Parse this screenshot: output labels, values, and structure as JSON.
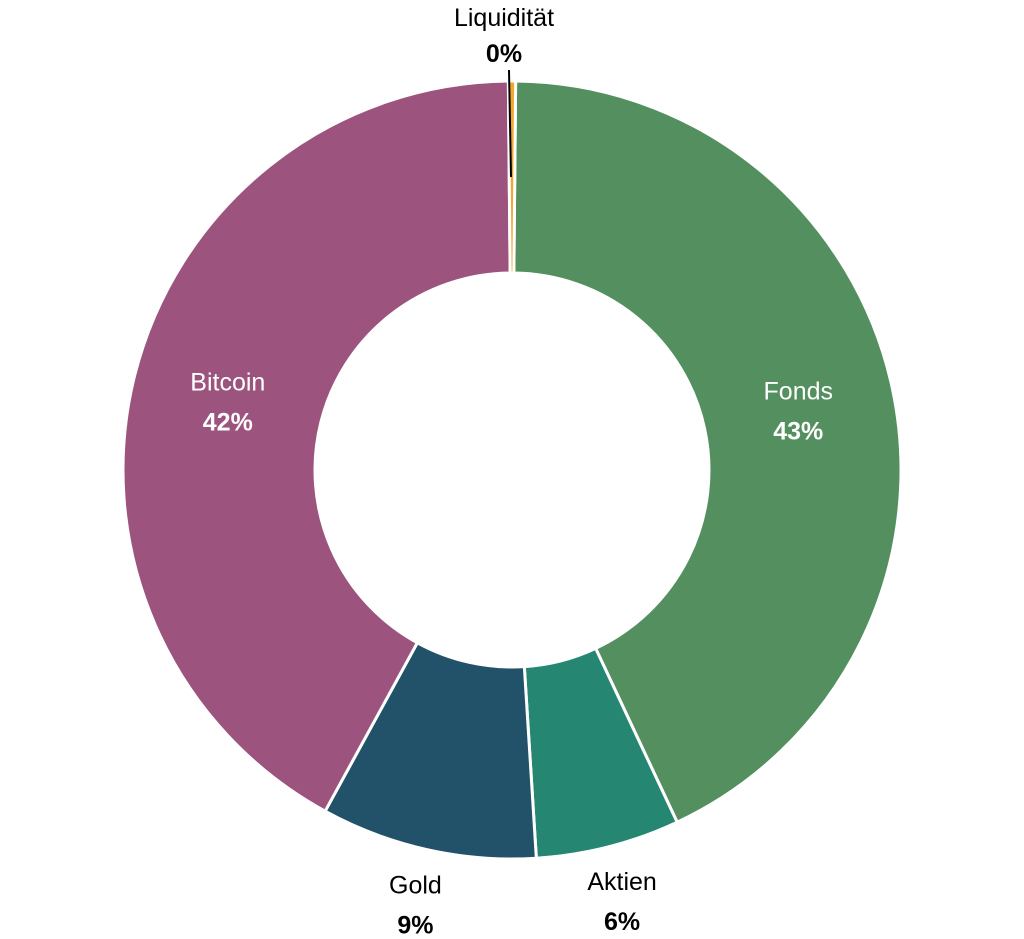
{
  "chart_data": {
    "type": "pie",
    "variant": "donut",
    "title": "",
    "legend": "none",
    "slices": [
      {
        "label": "Fonds",
        "value": 43,
        "value_label": "43%",
        "color": "#548f5f",
        "label_placement": "inside"
      },
      {
        "label": "Aktien",
        "value": 6,
        "value_label": "6%",
        "color": "#258672",
        "label_placement": "outside"
      },
      {
        "label": "Gold",
        "value": 9,
        "value_label": "9%",
        "color": "#22526a",
        "label_placement": "outside"
      },
      {
        "label": "Bitcoin",
        "value": 42,
        "value_label": "42%",
        "color": "#9c547e",
        "label_placement": "inside"
      },
      {
        "label": "Liquidität",
        "value": 0.3,
        "value_label": "0%",
        "color": "#f2a731",
        "label_placement": "outside-leader"
      }
    ],
    "start_angle": "12 o'clock",
    "direction": "clockwise",
    "inside_label_color": "#ffffff",
    "outside_label_color": "#000000",
    "separator_color": "#ffffff"
  }
}
